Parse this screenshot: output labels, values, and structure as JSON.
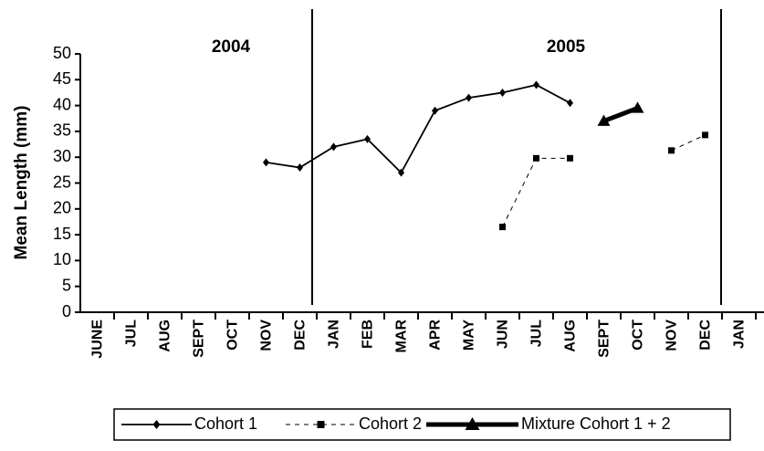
{
  "chart_data": {
    "type": "line",
    "y_label": "Mean Length (mm)",
    "annotations": [
      "2004",
      "2005"
    ],
    "categories": [
      "JUNE",
      "JUL",
      "AUG",
      "SEPT",
      "OCT",
      "NOV",
      "DEC",
      "JAN",
      "FEB",
      "MAR",
      "APR",
      "MAY",
      "JUN",
      "JUL",
      "AUG",
      "SEPT",
      "OCT",
      "NOV",
      "DEC",
      "JAN"
    ],
    "series": [
      {
        "name": "Cohort 1",
        "color": "#000000",
        "line_style": "solid",
        "marker": "diamond",
        "values": [
          null,
          null,
          null,
          null,
          null,
          29,
          28,
          32,
          33.5,
          27,
          39,
          41.5,
          42.5,
          44,
          40.5,
          null,
          null,
          null,
          null,
          null
        ]
      },
      {
        "name": "Cohort 2",
        "color": "#000000",
        "line_style": "dashed",
        "marker": "square",
        "values": [
          null,
          null,
          null,
          null,
          null,
          null,
          null,
          null,
          null,
          null,
          null,
          null,
          16.5,
          29.8,
          29.8,
          null,
          null,
          31.3,
          34.3,
          null
        ]
      },
      {
        "name": "Mixture Cohort 1 + 2",
        "color": "#000000",
        "line_style": "thick",
        "marker": "triangle",
        "values": [
          null,
          null,
          null,
          null,
          null,
          null,
          null,
          null,
          null,
          null,
          null,
          null,
          null,
          null,
          null,
          37,
          39.5,
          null,
          null,
          null
        ]
      }
    ],
    "ylim": [
      0,
      50
    ],
    "yticks": [
      0,
      5,
      10,
      15,
      20,
      25,
      30,
      35,
      40,
      45,
      50
    ],
    "grid": false,
    "legend": "bottom"
  }
}
